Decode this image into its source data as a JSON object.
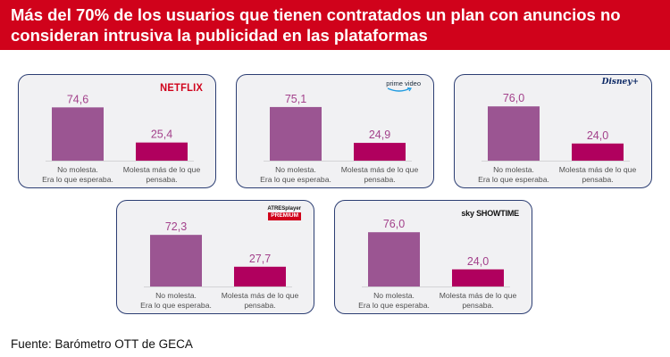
{
  "header": {
    "title": "Más del 70% de los usuarios que tienen contratados un plan con anuncios no consideran intrusiva la publicidad en las plataformas"
  },
  "footer": {
    "source": "Fuente: Barómetro OTT de GECA"
  },
  "colors": {
    "header_bg": "#d0021b",
    "bar_1": "#9b5592",
    "bar_2": "#b0005e",
    "value_text": "#a3418b"
  },
  "cards": [
    {
      "logo": "NETFLIX",
      "logo_style": "netflix"
    },
    {
      "logo": "prime video",
      "logo_style": "prime"
    },
    {
      "logo": "Disney+",
      "logo_style": "disney"
    },
    {
      "logo_line1": "ATRESplayer",
      "logo_line2": "PREMIUM",
      "logo_style": "atres"
    },
    {
      "logo": "sky SHOWTIME",
      "logo_style": "sky"
    }
  ],
  "chart_data": [
    {
      "type": "bar",
      "categories": [
        "No molesta.\nEra lo que esperaba.",
        "Molesta más de lo que\npensaba."
      ],
      "values": [
        74.6,
        25.4
      ],
      "labels": [
        "74,6",
        "25,4"
      ],
      "ylim": [
        0,
        100
      ]
    },
    {
      "type": "bar",
      "categories": [
        "No molesta.\nEra lo que esperaba.",
        "Molesta más de lo que\npensaba."
      ],
      "values": [
        75.1,
        24.9
      ],
      "labels": [
        "75,1",
        "24,9"
      ],
      "ylim": [
        0,
        100
      ]
    },
    {
      "type": "bar",
      "categories": [
        "No molesta.\nEra lo que esperaba.",
        "Molesta más de lo que\npensaba."
      ],
      "values": [
        76.0,
        24.0
      ],
      "labels": [
        "76,0",
        "24,0"
      ],
      "ylim": [
        0,
        100
      ]
    },
    {
      "type": "bar",
      "categories": [
        "No molesta.\nEra lo que esperaba.",
        "Molesta más de lo que\npensaba."
      ],
      "values": [
        72.3,
        27.7
      ],
      "labels": [
        "72,3",
        "27,7"
      ],
      "ylim": [
        0,
        100
      ]
    },
    {
      "type": "bar",
      "categories": [
        "No molesta.\nEra lo que esperaba.",
        "Molesta más de lo que\npensaba."
      ],
      "values": [
        76.0,
        24.0
      ],
      "labels": [
        "76,0",
        "24,0"
      ],
      "ylim": [
        0,
        100
      ]
    }
  ]
}
